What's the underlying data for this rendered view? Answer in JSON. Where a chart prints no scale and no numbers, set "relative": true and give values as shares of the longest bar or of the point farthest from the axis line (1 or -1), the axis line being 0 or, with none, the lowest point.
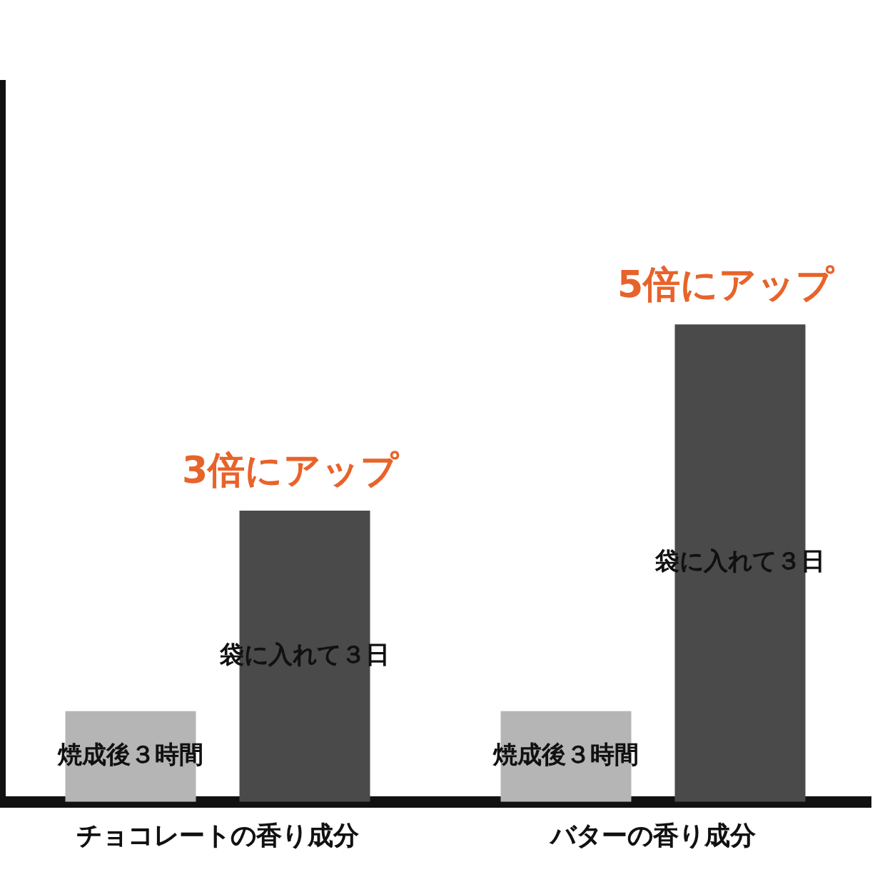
{
  "chart_data": {
    "type": "bar",
    "relative": true,
    "categories": [
      "チョコレートの香り成分",
      "バターの香り成分"
    ],
    "series": [
      {
        "name": "焼成後３時間",
        "color": "#b5b5b5",
        "values": [
          0.19,
          0.19
        ]
      },
      {
        "name": "袋に入れて３日",
        "color": "#4a4a4a",
        "values": [
          0.61,
          1
        ]
      }
    ],
    "annotations": [
      "3倍にアップ",
      "5倍にアップ"
    ],
    "legend": false
  }
}
